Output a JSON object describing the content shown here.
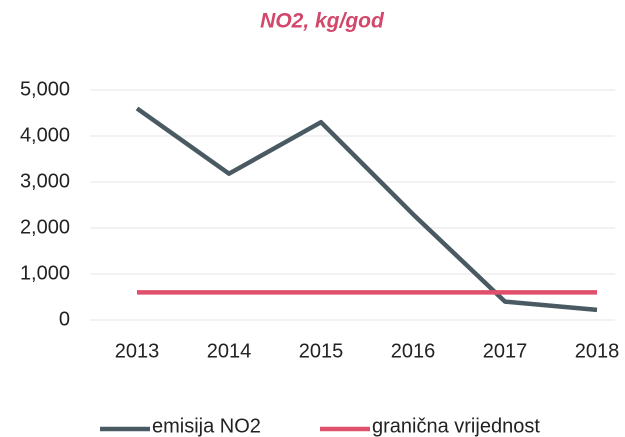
{
  "chart_data": {
    "type": "line",
    "title": "NO2, kg/god",
    "categories": [
      "2013",
      "2014",
      "2015",
      "2016",
      "2017",
      "2018"
    ],
    "series": [
      {
        "name": "emisija NO2",
        "color": "#4a5a62",
        "values": [
          4600,
          3180,
          4300,
          2300,
          400,
          220
        ]
      },
      {
        "name": "granična vrijednost",
        "color": "#e0506a",
        "values": [
          600,
          600,
          600,
          600,
          600,
          600
        ]
      }
    ],
    "ylim": [
      0,
      5000
    ],
    "yticks": [
      0,
      {
        "value": 1000,
        "label": "1,000"
      },
      {
        "value": 2000,
        "label": "2,000"
      },
      {
        "value": 3000,
        "label": "3,000"
      },
      {
        "value": 4000,
        "label": "4,000"
      },
      {
        "value": 5000,
        "label": "5,000"
      }
    ],
    "grid": true
  }
}
